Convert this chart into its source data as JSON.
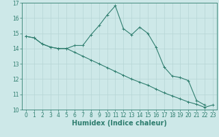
{
  "xlabel": "Humidex (Indice chaleur)",
  "x": [
    0,
    1,
    2,
    3,
    4,
    5,
    6,
    7,
    8,
    9,
    10,
    11,
    12,
    13,
    14,
    15,
    16,
    17,
    18,
    19,
    20,
    21,
    22,
    23
  ],
  "line1_y": [
    14.8,
    14.7,
    14.3,
    14.1,
    14.0,
    14.0,
    14.2,
    14.2,
    14.9,
    15.5,
    16.2,
    16.8,
    15.3,
    14.9,
    15.4,
    15.0,
    14.1,
    12.8,
    12.2,
    12.1,
    11.9,
    10.6,
    10.3,
    null
  ],
  "line2_y": [
    14.8,
    14.7,
    14.3,
    14.1,
    14.0,
    14.0,
    13.75,
    13.5,
    13.25,
    13.0,
    12.75,
    12.5,
    12.25,
    12.0,
    11.8,
    11.6,
    11.35,
    11.1,
    10.9,
    10.7,
    10.5,
    10.35,
    10.15,
    10.3
  ],
  "line_color": "#2e7d6e",
  "bg_color": "#cde8e8",
  "grid_color": "#b5d5d5",
  "xlim": [
    -0.5,
    23.5
  ],
  "ylim": [
    10,
    17
  ],
  "yticks": [
    10,
    11,
    12,
    13,
    14,
    15,
    16,
    17
  ],
  "xticks": [
    0,
    1,
    2,
    3,
    4,
    5,
    6,
    7,
    8,
    9,
    10,
    11,
    12,
    13,
    14,
    15,
    16,
    17,
    18,
    19,
    20,
    21,
    22,
    23
  ],
  "tick_fontsize": 5.5,
  "xlabel_fontsize": 7.0
}
